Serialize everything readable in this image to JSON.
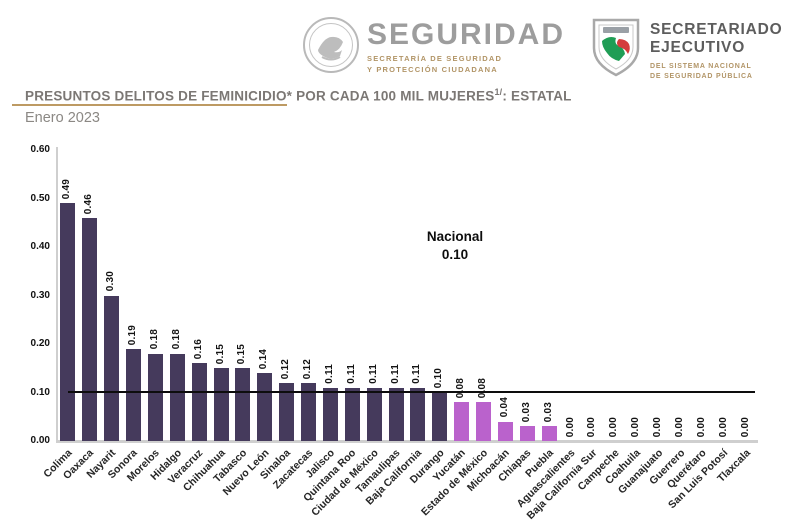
{
  "header": {
    "left_logo": {
      "brand": "SEGURIDAD",
      "caption_line1": "SECRETARÍA DE SEGURIDAD",
      "caption_line2": "Y PROTECCIÓN CIUDADANA"
    },
    "right_logo": {
      "brand_line1": "SECRETARIADO",
      "brand_line2": "EJECUTIVO",
      "caption_line1": "DEL SISTEMA NACIONAL",
      "caption_line2": "DE SEGURIDAD PÚBLICA"
    }
  },
  "title": {
    "text": "PRESUNTOS DELITOS DE FEMINICIDIO* POR CADA 100 MIL MUJERES",
    "superscript": "1/",
    "suffix": ": ESTATAL",
    "subtitle": "Enero 2023"
  },
  "colors": {
    "bar_dark": "#453a5c",
    "bar_highlight": "#ba62cc",
    "accent_underline": "#bd9a63",
    "axis_gray": "#cfcfcf",
    "national_line": "#0d0d0d"
  },
  "chart_data": {
    "type": "bar",
    "title": "PRESUNTOS DELITOS DE FEMINICIDIO* POR CADA 100 MIL MUJERES1/: ESTATAL",
    "subtitle": "Enero 2023",
    "categories": [
      "Colima",
      "Oaxaca",
      "Nayarit",
      "Sonora",
      "Morelos",
      "Hidalgo",
      "Veracruz",
      "Chihuahua",
      "Tabasco",
      "Nuevo León",
      "Sinaloa",
      "Zacatecas",
      "Jalisco",
      "Quintana Roo",
      "Ciudad de México",
      "Tamaulipas",
      "Baja California",
      "Durango",
      "Yucatán",
      "Estado de México",
      "Michoacán",
      "Chiapas",
      "Puebla",
      "Aguascalientes",
      "Baja California Sur",
      "Campeche",
      "Coahuila",
      "Guanajuato",
      "Guerrero",
      "Querétaro",
      "San Luis Potosí",
      "Tlaxcala"
    ],
    "values": [
      0.49,
      0.46,
      0.3,
      0.19,
      0.18,
      0.18,
      0.16,
      0.15,
      0.15,
      0.14,
      0.12,
      0.12,
      0.11,
      0.11,
      0.11,
      0.11,
      0.11,
      0.1,
      0.08,
      0.08,
      0.04,
      0.03,
      0.03,
      0.0,
      0.0,
      0.0,
      0.0,
      0.0,
      0.0,
      0.0,
      0.0,
      0.0
    ],
    "highlight_indices": [
      18,
      19,
      20,
      21,
      22
    ],
    "annotation": {
      "line1": "Nacional",
      "line2": "0.10",
      "value": 0.1
    },
    "xlabel": "",
    "ylabel": "",
    "ylim": [
      0,
      0.6
    ],
    "ytick_step": 0.1,
    "ytick_labels": [
      "0.00",
      "0.10",
      "0.20",
      "0.30",
      "0.40",
      "0.50",
      "0.60"
    ],
    "grid": false,
    "legend": "none",
    "value_labels": "on, rotated 90, 2 decimals",
    "xlabel_rotation": 45
  }
}
